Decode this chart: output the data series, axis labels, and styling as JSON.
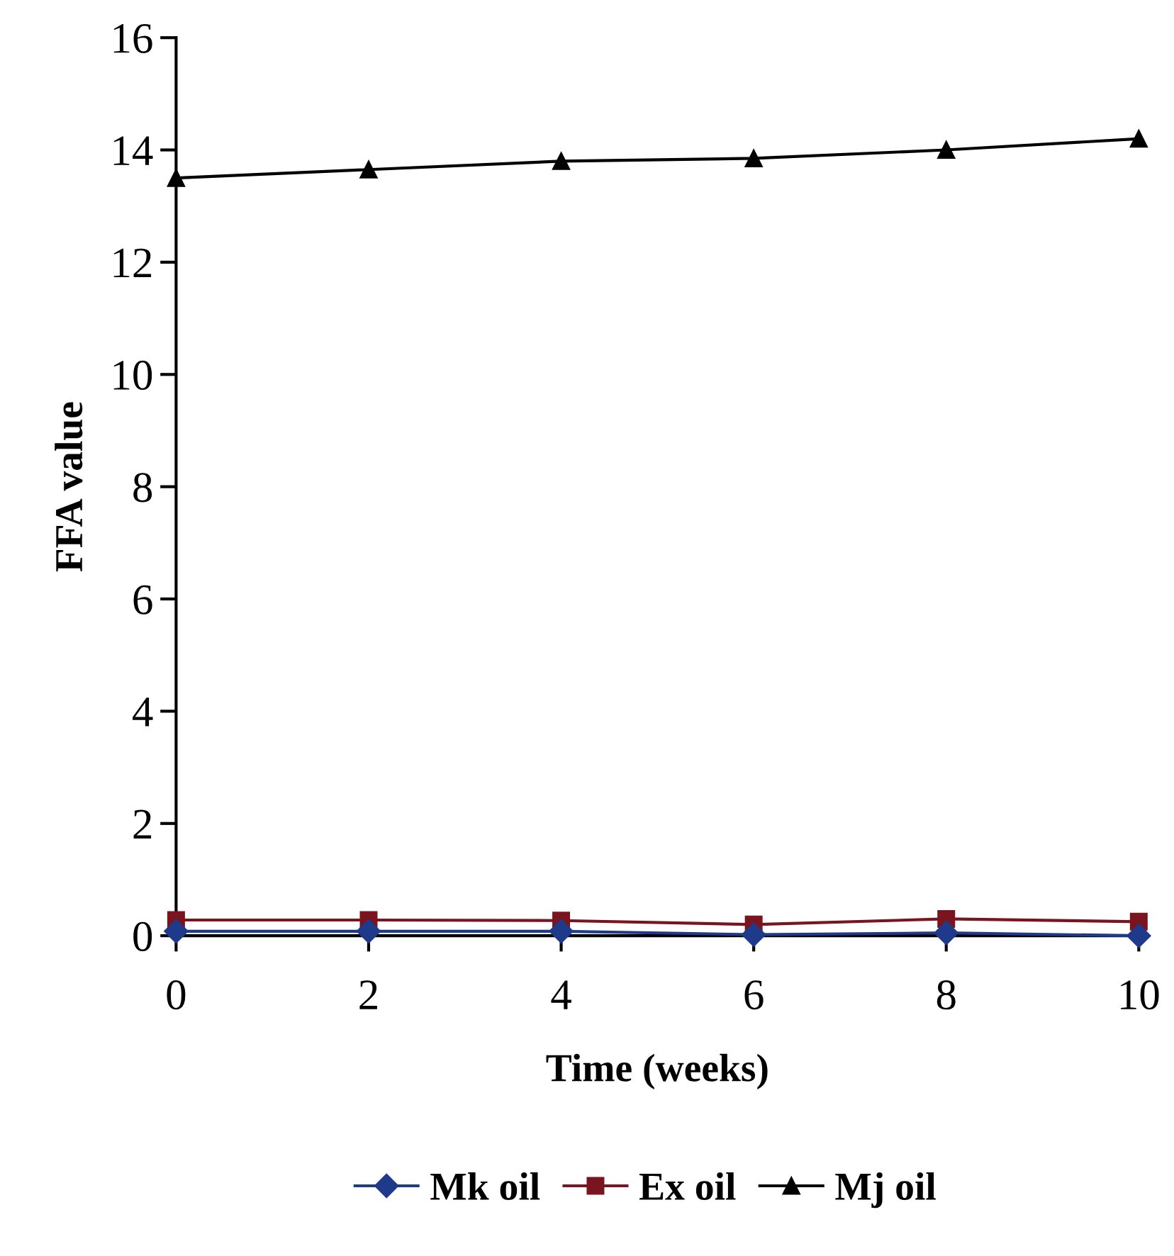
{
  "chart_data": {
    "type": "line",
    "xlabel": "Time (weeks)",
    "ylabel": "FFA value",
    "x": [
      0,
      2,
      4,
      6,
      8,
      10
    ],
    "series": [
      {
        "name": "Mk oil",
        "color": "#1f3a8a",
        "marker": "diamond",
        "values": [
          0.08,
          0.08,
          0.08,
          0.02,
          0.05,
          0.0
        ]
      },
      {
        "name": "Ex oil",
        "color": "#7a1520",
        "marker": "square",
        "values": [
          0.28,
          0.28,
          0.27,
          0.2,
          0.3,
          0.25
        ]
      },
      {
        "name": "Mj oil",
        "color": "#000000",
        "marker": "triangle",
        "values": [
          13.5,
          13.65,
          13.8,
          13.85,
          14.0,
          14.2
        ]
      }
    ],
    "xlim": [
      0,
      10
    ],
    "ylim": [
      0,
      16
    ],
    "xticks": [
      0,
      2,
      4,
      6,
      8,
      10
    ],
    "yticks": [
      0,
      2,
      4,
      6,
      8,
      10,
      12,
      14,
      16
    ],
    "grid": false,
    "legend": "bottom"
  }
}
